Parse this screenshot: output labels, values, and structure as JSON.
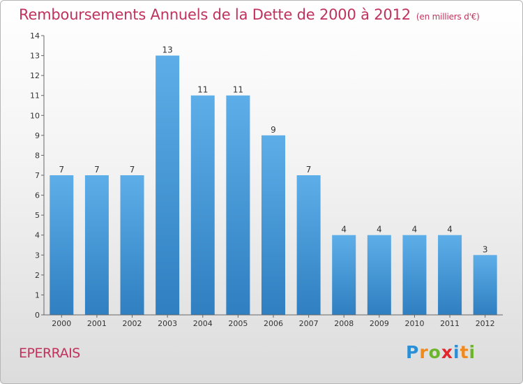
{
  "header": {
    "title": "Remboursements Annuels de la Dette de 2000 à 2012",
    "subtitle": "(en milliers d'€)"
  },
  "footer": {
    "commune": "EPERRAIS",
    "logo_letters": [
      "P",
      "r",
      "o",
      "x",
      "i",
      "t",
      "i"
    ],
    "logo_colors": [
      "#2a8fd6",
      "#f08a1c",
      "#6cb52d",
      "#e2262c",
      "#2a8fd6",
      "#f08a1c",
      "#6cb52d"
    ]
  },
  "chart_data": {
    "type": "bar",
    "categories": [
      "2000",
      "2001",
      "2002",
      "2003",
      "2004",
      "2005",
      "2006",
      "2007",
      "2008",
      "2009",
      "2010",
      "2011",
      "2012"
    ],
    "values": [
      7,
      7,
      7,
      13,
      11,
      11,
      9,
      7,
      4,
      4,
      4,
      4,
      3
    ],
    "y_ticks": [
      "0",
      "1",
      "2",
      "3",
      "4",
      "5",
      "6",
      "7",
      "8",
      "9",
      "10",
      "11",
      "12",
      "13",
      "14"
    ],
    "ylim": [
      0,
      14
    ],
    "grid": false,
    "bar_color_top": "#5daee8",
    "bar_color_bottom": "#2f7fc1"
  }
}
